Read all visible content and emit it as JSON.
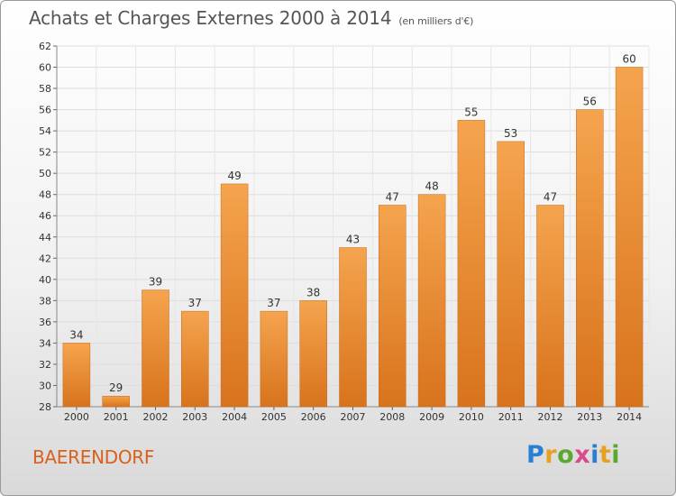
{
  "header": {
    "title": "Achats et Charges Externes 2000 à 2014",
    "subtitle": "(en milliers d'€)"
  },
  "footer": {
    "commune": "BAERENDORF",
    "logo": {
      "letters": [
        "P",
        "r",
        "o",
        "x",
        "i",
        "t",
        "i"
      ],
      "colors": [
        "#2a7fd4",
        "#e8a020",
        "#5aa830",
        "#d94a8c",
        "#2a7fd4",
        "#e8a020",
        "#5aa830"
      ]
    }
  },
  "chart_data": {
    "type": "bar",
    "title": "Achats et Charges Externes 2000 à 2014",
    "subtitle": "(en milliers d'€)",
    "categories": [
      "2000",
      "2001",
      "2002",
      "2003",
      "2004",
      "2005",
      "2006",
      "2007",
      "2008",
      "2009",
      "2010",
      "2011",
      "2012",
      "2013",
      "2014"
    ],
    "values": [
      34,
      29,
      39,
      37,
      49,
      37,
      38,
      43,
      47,
      48,
      55,
      53,
      47,
      56,
      60
    ],
    "ylim": [
      28,
      62
    ],
    "yticks": [
      28,
      30,
      32,
      34,
      36,
      38,
      40,
      42,
      44,
      46,
      48,
      50,
      52,
      54,
      56,
      58,
      60,
      62
    ],
    "grid": true,
    "bar_color_top": "#f5a44e",
    "bar_color_bottom": "#d8731c"
  }
}
